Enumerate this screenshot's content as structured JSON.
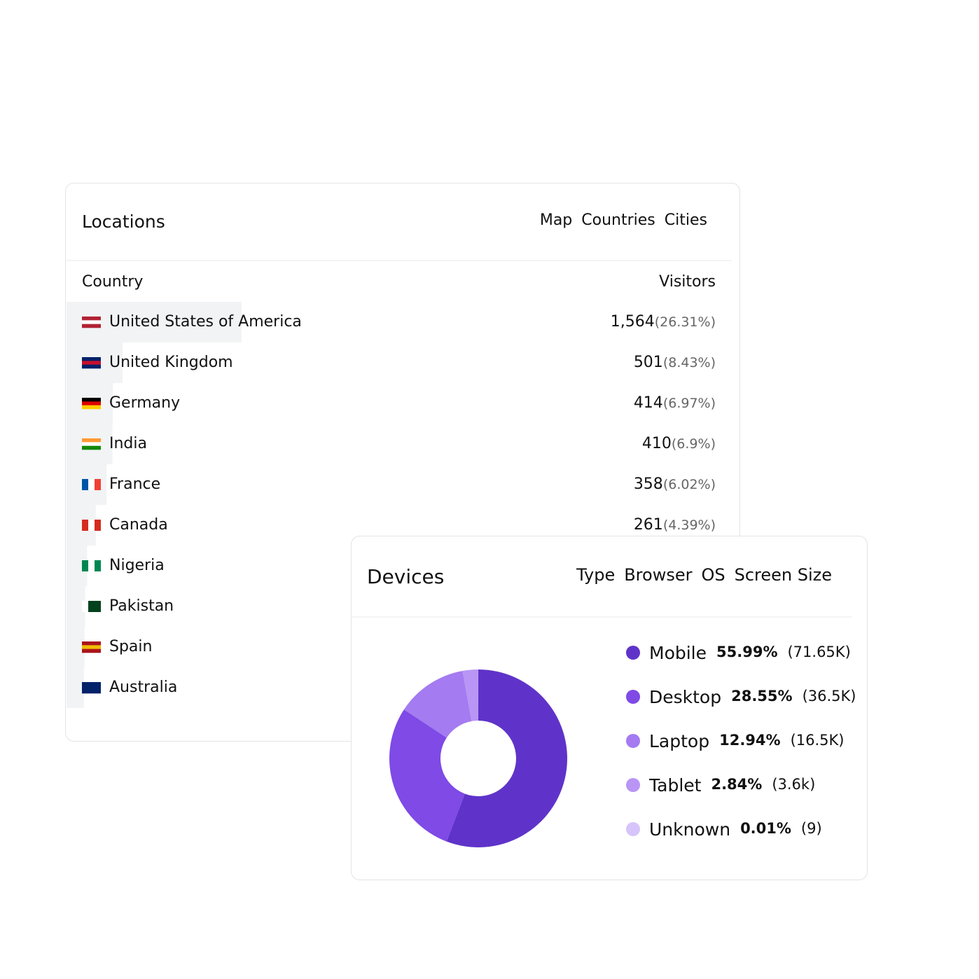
{
  "locations": {
    "title": "Locations",
    "tabs": [
      "Map",
      "Countries",
      "Cities"
    ],
    "columns": [
      "Country",
      "Visitors"
    ],
    "rows": [
      {
        "country": "United States of America",
        "visitors": "1,564",
        "share": 26.31,
        "share_label": "(26.31%)"
      },
      {
        "country": "United Kingdom",
        "visitors": "501",
        "share": 8.43,
        "share_label": "(8.43%)"
      },
      {
        "country": "Germany",
        "visitors": "414",
        "share": 6.97,
        "share_label": "(6.97%)"
      },
      {
        "country": "India",
        "visitors": "410",
        "share": 6.9,
        "share_label": "(6.9%)"
      },
      {
        "country": "France",
        "visitors": "358",
        "share": 6.02,
        "share_label": "(6.02%)"
      },
      {
        "country": "Canada",
        "visitors": "261",
        "share": 4.39,
        "share_label": "(4.39%)"
      },
      {
        "country": "Nigeria",
        "visitors": null,
        "share": 3.1,
        "share_label": null
      },
      {
        "country": "Pakistan",
        "visitors": null,
        "share": 2.8,
        "share_label": null
      },
      {
        "country": "Spain",
        "visitors": null,
        "share": 2.7,
        "share_label": null
      },
      {
        "country": "Australia",
        "visitors": null,
        "share": 2.6,
        "share_label": null
      }
    ]
  },
  "chart_data": {
    "type": "pie",
    "title": "Devices",
    "tabs": [
      "Type",
      "Browser",
      "OS",
      "Screen Size"
    ],
    "categories": [
      "Mobile",
      "Desktop",
      "Laptop",
      "Tablet",
      "Unknown"
    ],
    "values": [
      55.99,
      28.55,
      12.94,
      2.84,
      0.01
    ],
    "value_labels": [
      "55.99%",
      "28.55%",
      "12.94%",
      "2.84%",
      "0.01%"
    ],
    "counts": [
      "(71.65K)",
      "(36.5K)",
      "(16.5K)",
      "(3.6k)",
      "(9)"
    ],
    "colors": [
      "#5f33c9",
      "#7f4ae6",
      "#a47bf0",
      "#b995f5",
      "#d7c4fa"
    ]
  }
}
